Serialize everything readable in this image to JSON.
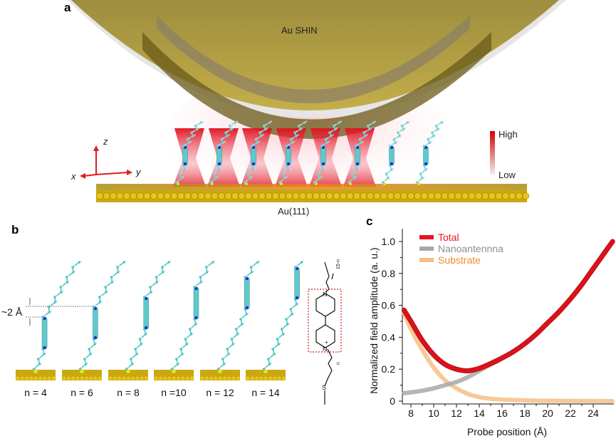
{
  "panel_a": {
    "label": "a",
    "shin_label": "Au SHIN",
    "substrate_label": "Au(111)",
    "axes": {
      "z": "z",
      "x": "x",
      "y": "y"
    },
    "colorbar": {
      "high": "High",
      "low": "Low",
      "high_color": "#d40000",
      "low_color": "#f2f2f2"
    },
    "gold_color": "#b09a3c",
    "molecule_color": "#5fd3d3"
  },
  "panel_b": {
    "label": "b",
    "spacing_label": "~2 Å",
    "molecules": [
      {
        "n": 4,
        "label": "n = 4"
      },
      {
        "n": 6,
        "label": "n = 6"
      },
      {
        "n": 8,
        "label": "n = 8"
      },
      {
        "n": 10,
        "label": "n =10"
      },
      {
        "n": 12,
        "label": "n = 12"
      },
      {
        "n": 14,
        "label": "n = 14"
      }
    ],
    "structure": {
      "top_subscript": "15-n",
      "bottom_subscript": "n",
      "atom_n_top": "N",
      "atom_n_bottom": "N",
      "atom_s": "S",
      "charge": "+"
    }
  },
  "chart_data": {
    "panel_label": "c",
    "type": "line",
    "xlabel": "Probe position (Å)",
    "ylabel": "Normalized field amplitude (a. u.)",
    "xlim": [
      7.4,
      25.7
    ],
    "ylim": [
      0,
      1.08
    ],
    "xticks": [
      8,
      10,
      12,
      14,
      16,
      18,
      20,
      22,
      24
    ],
    "yticks": [
      0,
      0.2,
      0.4,
      0.6,
      0.8,
      1.0
    ],
    "ytick_labels": [
      "0",
      "0.2",
      "0.4",
      "0.6",
      "0.8",
      "1.0"
    ],
    "grid": false,
    "legend_position": "top-left",
    "series": [
      {
        "name": "Total",
        "color": "#e8141e",
        "x": [
          7.4,
          8,
          9,
          10,
          11,
          12,
          13,
          14,
          15,
          16,
          17,
          18,
          19,
          20,
          21,
          22,
          23,
          24,
          25,
          25.7
        ],
        "y": [
          0.57,
          0.5,
          0.38,
          0.29,
          0.23,
          0.2,
          0.19,
          0.205,
          0.235,
          0.27,
          0.31,
          0.36,
          0.42,
          0.49,
          0.56,
          0.64,
          0.73,
          0.83,
          0.93,
          1.0
        ]
      },
      {
        "name": "Nanoantennna",
        "color": "#a8a8a8",
        "x": [
          7.4,
          8,
          9,
          10,
          11,
          12,
          13,
          14,
          15,
          15.6
        ],
        "y": [
          0.05,
          0.055,
          0.065,
          0.08,
          0.1,
          0.12,
          0.15,
          0.19,
          0.23,
          0.25
        ]
      },
      {
        "name": "Substrate",
        "color": "#f5bf85",
        "x": [
          7.4,
          8,
          9,
          10,
          11,
          12,
          13,
          14,
          15,
          16,
          18,
          20,
          25.7
        ],
        "y": [
          0.55,
          0.45,
          0.32,
          0.21,
          0.13,
          0.08,
          0.045,
          0.025,
          0.015,
          0.01,
          0.005,
          0.002,
          0.0
        ]
      }
    ]
  }
}
